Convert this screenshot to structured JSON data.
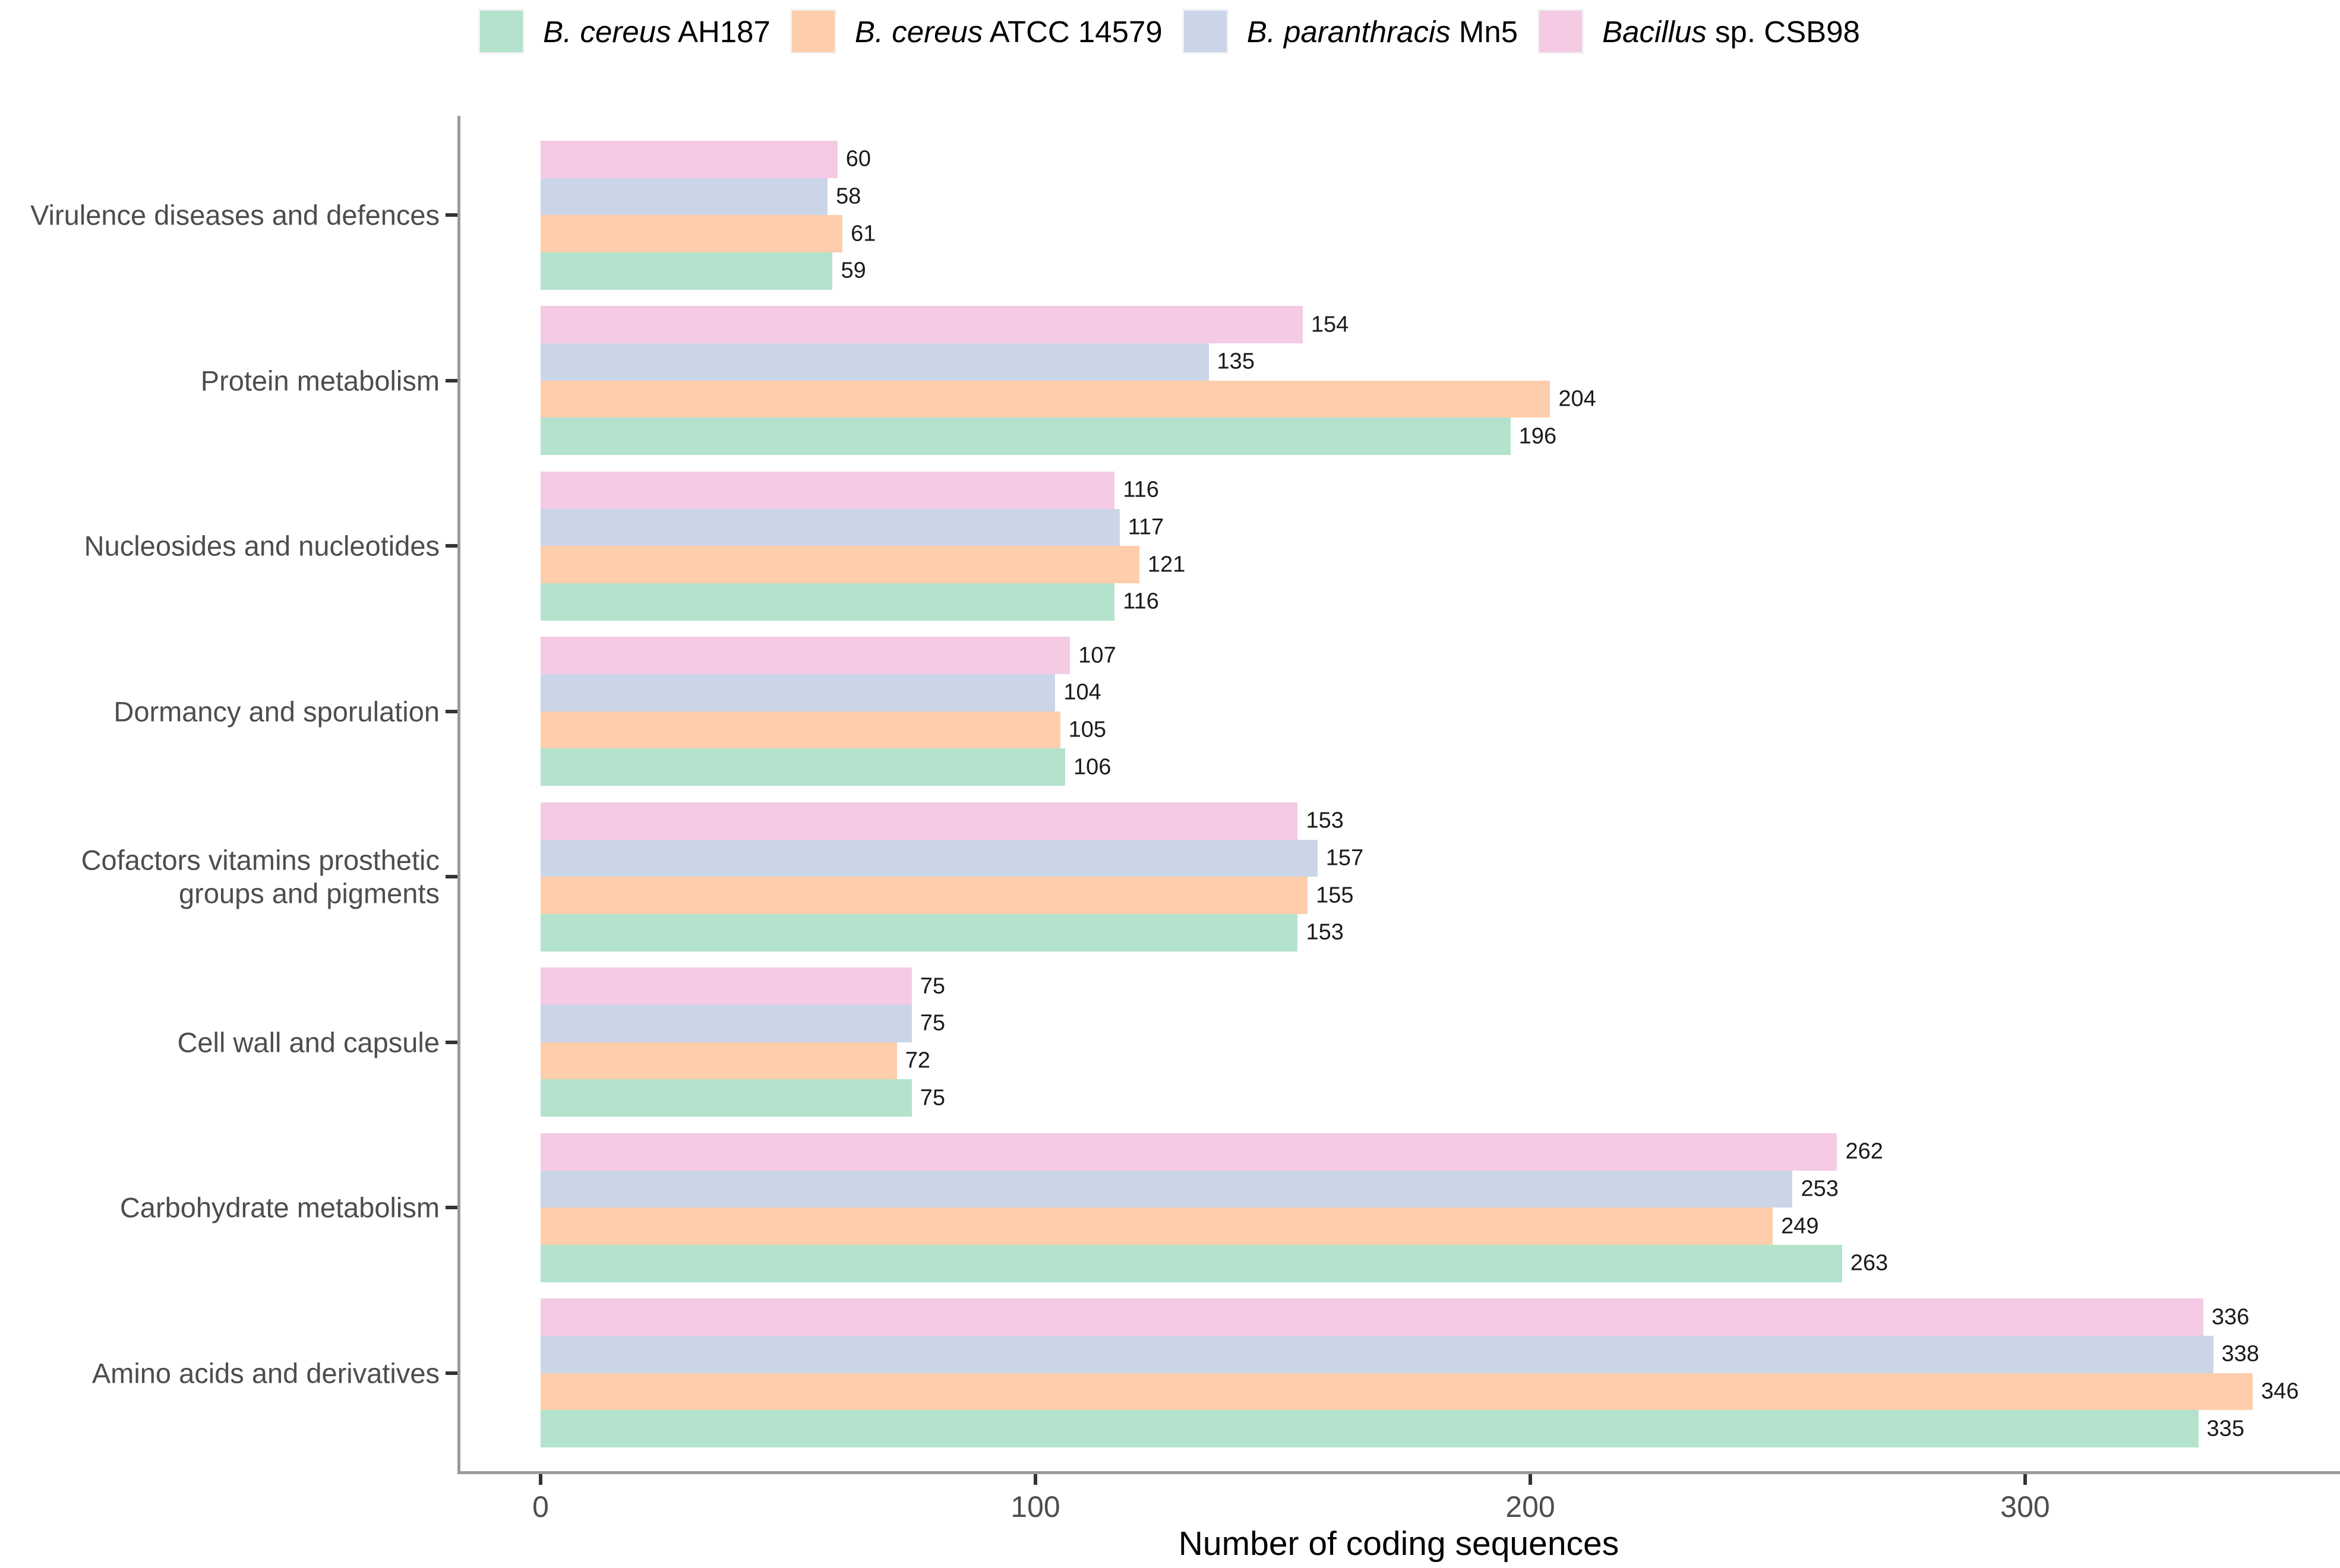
{
  "colors": {
    "green": "#B3E2CD",
    "orange": "#FDCDAC",
    "blue": "#CBD5E8",
    "pink": "#F4CAE4",
    "axis_line": "#9b9b9b",
    "tick": "#333333",
    "axis_text": "#4d4d4d"
  },
  "legend": {
    "items": [
      {
        "italic": "B. cereus",
        "roman": " AH187",
        "color": "#B3E2CD"
      },
      {
        "italic": "B. cereus",
        "roman": " ATCC 14579",
        "color": "#FDCDAC"
      },
      {
        "italic": "B. paranthracis",
        "roman": " Mn5",
        "color": "#CBD5E8"
      },
      {
        "italic": "Bacillus",
        "roman": " sp. CSB98",
        "color": "#F4CAE4"
      }
    ]
  },
  "chart_data": {
    "type": "bar",
    "orientation": "horizontal",
    "title": "",
    "xlabel": "Number of coding sequences",
    "ylabel": "",
    "xlim": [
      0,
      363
    ],
    "x_ticks": [
      0,
      100,
      200,
      300
    ],
    "grid": false,
    "legend_position": "top",
    "categories_top_to_bottom": [
      "Virulence diseases and defences",
      "Protein metabolism",
      "Nucleosides and nucleotides",
      "Dormancy and sporulation",
      "Cofactors vitamins prosthetic groups and pigments",
      "Cell wall and capsule",
      "Carbohydrate metabolism",
      "Amino acids and derivatives"
    ],
    "bar_order_within_group_top_to_bottom": [
      "Bacillus sp. CSB98",
      "B. paranthracis Mn5",
      "B. cereus ATCC 14579",
      "B. cereus AH187"
    ],
    "series": [
      {
        "name": "B. cereus AH187",
        "color": "#B3E2CD",
        "values": [
          59,
          196,
          116,
          106,
          153,
          75,
          263,
          335
        ]
      },
      {
        "name": "B. cereus ATCC 14579",
        "color": "#FDCDAC",
        "values": [
          61,
          204,
          121,
          105,
          155,
          72,
          249,
          346
        ]
      },
      {
        "name": "B. paranthracis Mn5",
        "color": "#CBD5E8",
        "values": [
          58,
          135,
          117,
          104,
          157,
          75,
          253,
          338
        ]
      },
      {
        "name": "Bacillus sp. CSB98",
        "color": "#F4CAE4",
        "values": [
          60,
          154,
          116,
          107,
          153,
          75,
          262,
          336
        ]
      }
    ]
  }
}
